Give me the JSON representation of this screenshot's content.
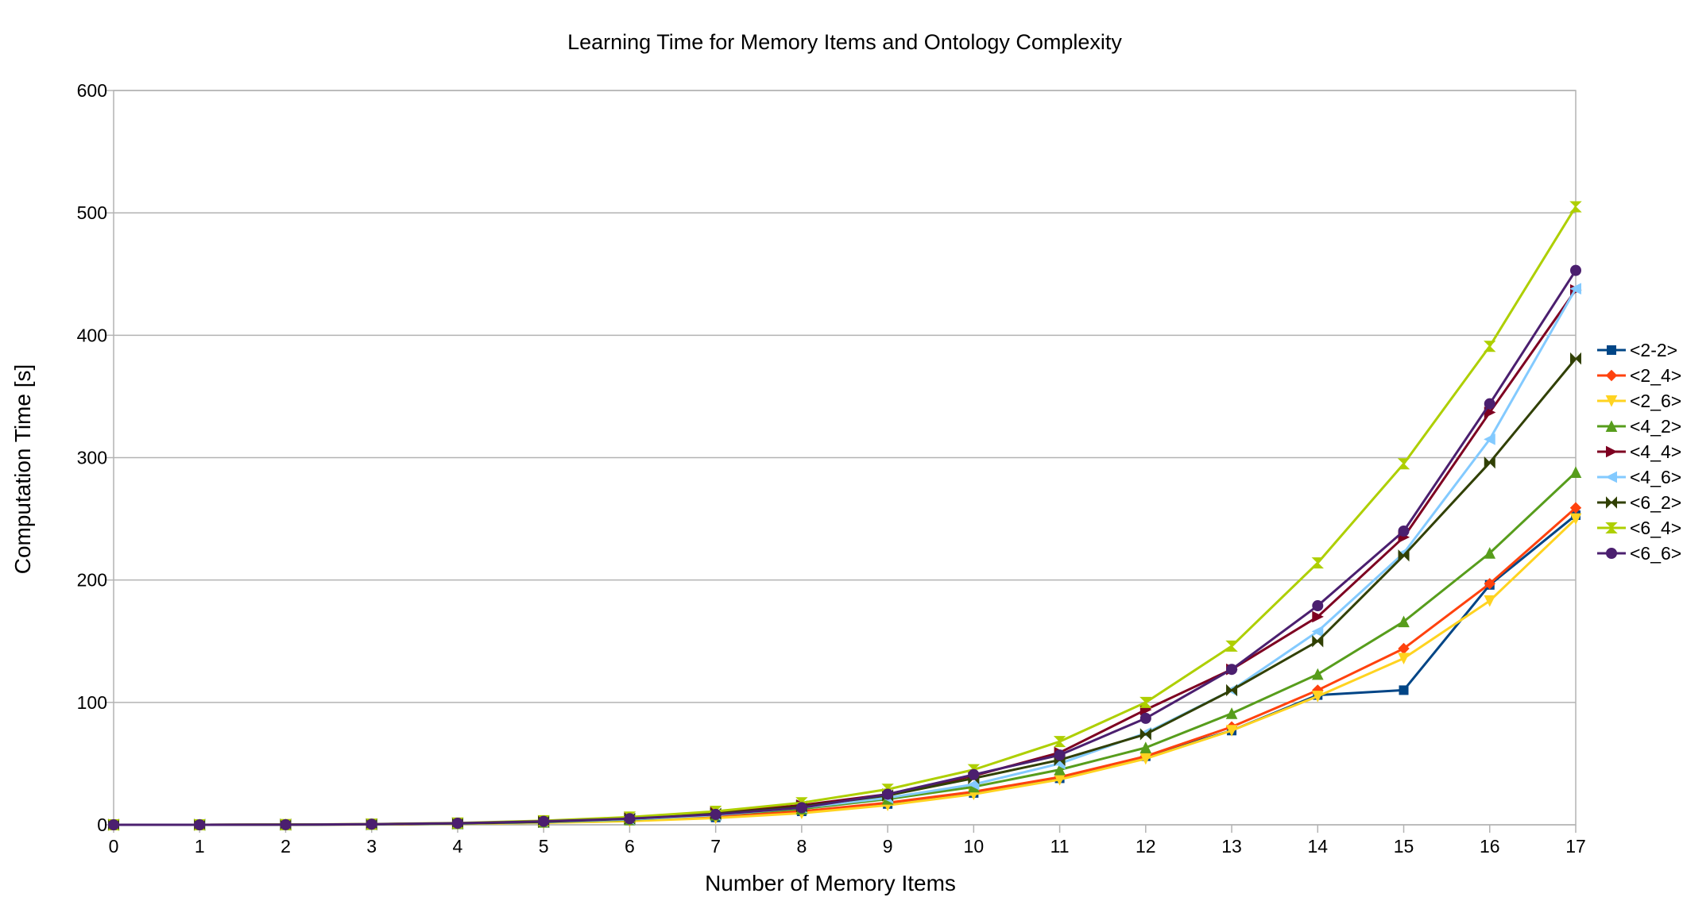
{
  "chart_data": {
    "type": "line",
    "title": "Learning Time for Memory Items and Ontology Complexity",
    "xlabel": "Number of Memory Items",
    "ylabel": "Computation Time [s]",
    "x": [
      0,
      1,
      2,
      3,
      4,
      5,
      6,
      7,
      8,
      9,
      10,
      11,
      12,
      13,
      14,
      15,
      16,
      17
    ],
    "xlim": [
      0,
      17
    ],
    "ylim": [
      0,
      600
    ],
    "yticks": [
      0,
      100,
      200,
      300,
      400,
      500,
      600
    ],
    "grid": "horizontal",
    "legend_position": "right",
    "series": [
      {
        "name": "<2-2>",
        "color": "#004586",
        "marker": "square",
        "values": [
          0,
          0,
          0.1,
          0.3,
          0.8,
          1.8,
          3.5,
          6,
          11,
          17,
          26,
          38,
          56,
          77,
          106,
          110,
          196,
          253
        ]
      },
      {
        "name": "<2_4>",
        "color": "#ff420e",
        "marker": "diamond",
        "values": [
          0,
          0,
          0.1,
          0.3,
          0.8,
          1.8,
          3.5,
          6.5,
          11,
          18,
          27,
          39,
          56,
          80,
          110,
          144,
          197,
          259
        ]
      },
      {
        "name": "<2_6>",
        "color": "#ffd320",
        "marker": "triangle-down",
        "values": [
          0,
          0,
          0.1,
          0.3,
          0.7,
          1.6,
          3,
          5.5,
          9.5,
          16,
          25,
          37,
          54,
          77,
          105,
          136,
          183,
          250
        ]
      },
      {
        "name": "<4_2>",
        "color": "#579d1c",
        "marker": "triangle-up",
        "values": [
          0,
          0,
          0.1,
          0.4,
          1,
          2.2,
          4.2,
          8,
          13,
          21,
          31,
          45,
          63,
          91,
          123,
          166,
          222,
          288
        ]
      },
      {
        "name": "<4_4>",
        "color": "#7e0021",
        "marker": "triangle-right",
        "values": [
          0,
          0,
          0.2,
          0.5,
          1.3,
          2.8,
          5.5,
          10,
          16,
          25,
          40,
          59,
          94,
          127,
          170,
          235,
          337,
          437
        ]
      },
      {
        "name": "<4_6>",
        "color": "#83caff",
        "marker": "triangle-left",
        "values": [
          0,
          0,
          0.1,
          0.4,
          1,
          2.2,
          4.5,
          8,
          14,
          22,
          33,
          50,
          75,
          110,
          158,
          222,
          315,
          438
        ]
      },
      {
        "name": "<6_2>",
        "color": "#314004",
        "marker": "bowtie",
        "values": [
          0,
          0,
          0.1,
          0.4,
          1.1,
          2.4,
          5,
          9,
          15,
          24,
          38,
          53,
          74,
          110,
          150,
          220,
          296,
          381
        ]
      },
      {
        "name": "<6_4>",
        "color": "#aecf00",
        "marker": "hourglass",
        "values": [
          0,
          0,
          0.2,
          0.6,
          1.5,
          3.3,
          6.3,
          11,
          18,
          29,
          45,
          68,
          100,
          146,
          214,
          295,
          391,
          505
        ]
      },
      {
        "name": "<6_6>",
        "color": "#4b1f6f",
        "marker": "circle",
        "values": [
          0,
          0,
          0.1,
          0.5,
          1.3,
          2.8,
          5,
          8.5,
          14,
          25,
          41,
          57,
          87,
          127,
          179,
          240,
          344,
          453
        ]
      }
    ]
  }
}
